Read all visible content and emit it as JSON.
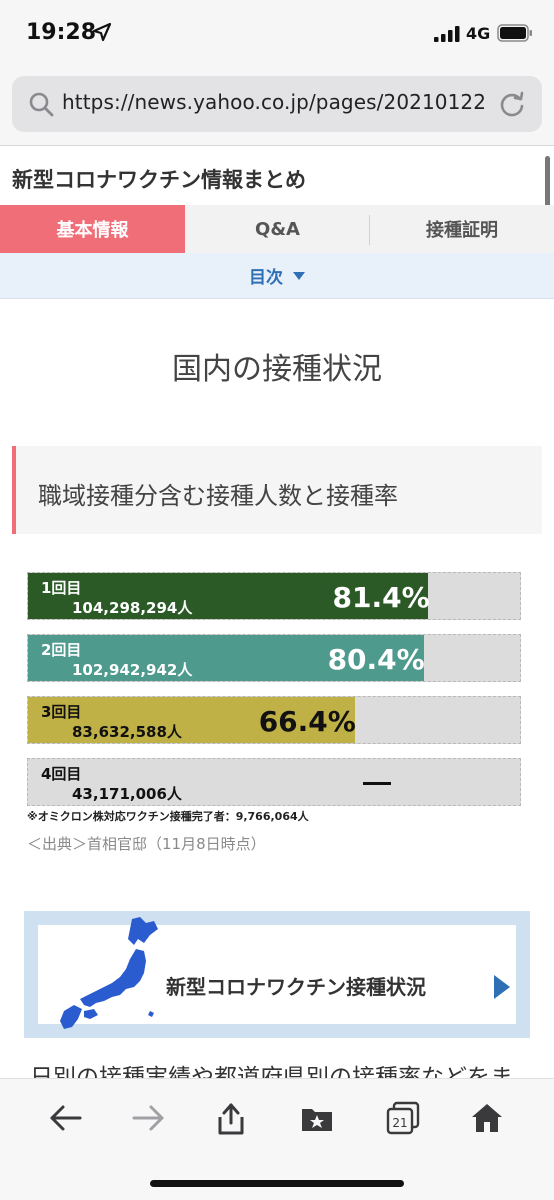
{
  "status_bar": {
    "time": "19:28",
    "network": "4G"
  },
  "browser": {
    "url": "https://news.yahoo.co.jp/pages/20210122"
  },
  "page": {
    "title": "新型コロナワクチン情報まとめ",
    "tabs": [
      {
        "label": "基本情報",
        "active": true
      },
      {
        "label": "Q&A",
        "active": false
      },
      {
        "label": "接種証明",
        "active": false
      }
    ],
    "toc_label": "目次",
    "section_heading": "国内の接種状況",
    "sub_heading": "職域接種分含む接種人数と接種率"
  },
  "vaccination": {
    "rows": [
      {
        "dose": "1回目",
        "people": "104,298,294人",
        "percent_label": "81.4%",
        "rate": 81.4,
        "color": "#2b5a27",
        "text_color": "#ffffff",
        "pct_color": "#ffffff"
      },
      {
        "dose": "2回目",
        "people": "102,942,942人",
        "percent_label": "80.4%",
        "rate": 80.4,
        "color": "#4e9a8d",
        "text_color": "#ffffff",
        "pct_color": "#ffffff"
      },
      {
        "dose": "3回目",
        "people": "83,632,588人",
        "percent_label": "66.4%",
        "rate": 66.4,
        "color": "#bfb146",
        "text_color": "#111111",
        "pct_color": "#111111"
      },
      {
        "dose": "4回目",
        "people": "43,171,006人",
        "percent_label": "",
        "rate": 0,
        "color": "#dcdcdc",
        "text_color": "#111111",
        "pct_color": "#111111"
      }
    ],
    "note": "※オミクロン株対応ワクチン接種完了者：9,766,064人",
    "source": "＜出典＞首相官邸（11月8日時点）"
  },
  "banner": {
    "text": "新型コロナワクチン接種状況"
  },
  "cut_text": "日別の接種実績や都道府県別の接種率などをま",
  "toolbar": {
    "tabs_count": "21"
  },
  "colors": {
    "accent": "#ef6e78",
    "link": "#2f6fb5",
    "map_blue": "#2a5ccf"
  },
  "icons": [
    "location-arrow-icon",
    "signal-icon",
    "battery-icon",
    "search-icon",
    "reload-icon",
    "caret-down-icon",
    "japan-map-icon",
    "play-arrow-icon",
    "back-icon",
    "forward-icon",
    "share-icon",
    "bookmarks-icon",
    "tabs-icon",
    "home-icon"
  ]
}
